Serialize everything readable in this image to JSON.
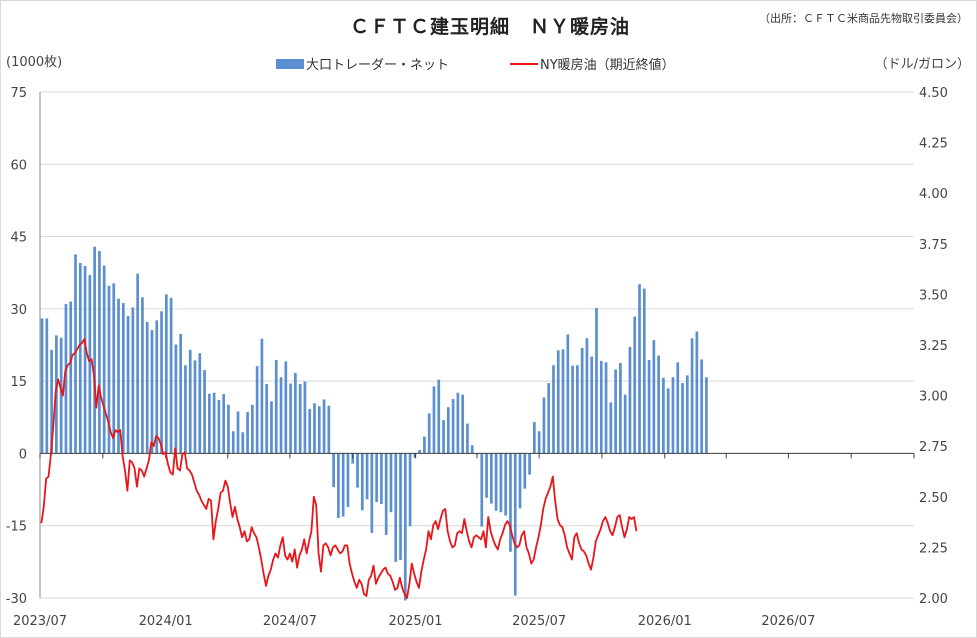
{
  "chart_data": {
    "type": "bar",
    "title": "ＣＦＴＣ建玉明細　ＮＹ暖房油",
    "source": "（出所：ＣＦＴＣ米商品先物取引委員会）",
    "left_unit": "(1000枚)",
    "right_unit": "（ドル/ガロン）",
    "left_axis": {
      "min": -30,
      "max": 75,
      "ticks": [
        "75",
        "60",
        "45",
        "30",
        "15",
        "0",
        "-15",
        "-30"
      ]
    },
    "right_axis": {
      "min": 2.0,
      "max": 4.5,
      "ticks": [
        "4.50",
        "4.25",
        "4.00",
        "3.75",
        "3.50",
        "3.25",
        "3.00",
        "2.75",
        "2.50",
        "2.25",
        "2.00"
      ]
    },
    "x_axis": {
      "start": "2023-07-01",
      "end": "2027-01-01",
      "tick_labels": [
        "2023/07",
        "2024/01",
        "2024/07",
        "2025/01",
        "2025/07",
        "2026/01",
        "2026/07"
      ],
      "tick_dates": [
        "2023-07-01",
        "2024-01-01",
        "2024-07-01",
        "2025-01-01",
        "2025-07-01",
        "2026-01-01",
        "2026-07-01"
      ]
    },
    "grid": "horizontal",
    "legend_position": "top-center",
    "series": [
      {
        "name": "大口トレーダー・ネット",
        "kind": "bar",
        "axis": "left",
        "color": "#5b8fcf",
        "start_date": "2023-07-04",
        "interval_days": 7,
        "values": [
          28,
          28,
          21.5,
          24.5,
          24,
          31,
          31.5,
          41.3,
          39.5,
          38.9,
          37,
          42.9,
          42,
          39,
          34.8,
          35.3,
          32.1,
          31.2,
          28.5,
          30.3,
          37.3,
          32.4,
          27.3,
          25.6,
          27.6,
          29.5,
          33,
          32.3,
          22.6,
          24.8,
          18.3,
          21.5,
          19.3,
          20.8,
          17.3,
          12.4,
          12.6,
          11.1,
          12.3,
          10.1,
          4.6,
          8.7,
          4.4,
          8.6,
          10.1,
          18.1,
          23.8,
          14.4,
          10.8,
          19.4,
          15.8,
          19.1,
          14.5,
          16.7,
          14.4,
          14.9,
          9.2,
          10.4,
          9.8,
          11.2,
          9.9,
          -7,
          -13.4,
          -13.1,
          -11.1,
          -2.1,
          -7.1,
          -11.8,
          -9.5,
          -16.5,
          -10.1,
          -10.5,
          -16.9,
          -12.2,
          -22.5,
          -22.1,
          -30.5,
          -15.1,
          -0.9,
          0.7,
          3.5,
          8.3,
          13.9,
          15.3,
          6.9,
          9.6,
          11.3,
          12.6,
          12.2,
          6.2,
          1.7,
          -0.2,
          -15.2,
          -9.2,
          -10.4,
          -11.9,
          -12.2,
          -12.9,
          -20.4,
          -29.5,
          -11.4,
          -7.3,
          -4.4,
          6.5,
          4.6,
          11.6,
          14.6,
          18.3,
          21.4,
          21.6,
          24.7,
          18.2,
          18.3,
          21.9,
          23.9,
          20.1,
          30.2,
          19.2,
          18.9,
          10.6,
          17.4,
          18.8,
          12.2,
          22.1,
          28.4,
          35.1,
          34.2,
          19.4,
          23.5,
          20.3,
          15.7,
          13.5,
          15.8,
          18.9,
          14.6,
          16.2,
          23.9,
          25.3,
          19.5,
          15.8
        ]
      },
      {
        "name": "NY暖房油（期近終値）",
        "kind": "line",
        "axis": "right",
        "color": "#e8151a",
        "start_date": "2023-07-03",
        "interval_days": 3.5,
        "values": [
          2.37,
          2.45,
          2.59,
          2.6,
          2.71,
          2.85,
          3.02,
          3.08,
          3.04,
          3.0,
          3.12,
          3.15,
          3.16,
          3.2,
          3.21,
          3.23,
          3.25,
          3.26,
          3.28,
          3.21,
          3.17,
          3.18,
          3.1,
          2.94,
          3.05,
          2.99,
          2.95,
          2.91,
          2.87,
          2.82,
          2.79,
          2.83,
          2.82,
          2.83,
          2.7,
          2.63,
          2.53,
          2.68,
          2.67,
          2.64,
          2.55,
          2.64,
          2.63,
          2.6,
          2.64,
          2.68,
          2.77,
          2.75,
          2.8,
          2.79,
          2.76,
          2.71,
          2.72,
          2.66,
          2.62,
          2.61,
          2.74,
          2.64,
          2.63,
          2.71,
          2.72,
          2.64,
          2.63,
          2.61,
          2.57,
          2.53,
          2.51,
          2.48,
          2.46,
          2.44,
          2.49,
          2.48,
          2.29,
          2.38,
          2.44,
          2.52,
          2.53,
          2.58,
          2.55,
          2.47,
          2.4,
          2.45,
          2.39,
          2.35,
          2.3,
          2.33,
          2.28,
          2.29,
          2.35,
          2.32,
          2.3,
          2.25,
          2.19,
          2.12,
          2.06,
          2.11,
          2.14,
          2.19,
          2.22,
          2.2,
          2.26,
          2.3,
          2.21,
          2.19,
          2.22,
          2.18,
          2.24,
          2.15,
          2.21,
          2.24,
          2.29,
          2.22,
          2.28,
          2.33,
          2.5,
          2.46,
          2.22,
          2.13,
          2.26,
          2.27,
          2.25,
          2.21,
          2.25,
          2.26,
          2.24,
          2.22,
          2.23,
          2.26,
          2.26,
          2.17,
          2.12,
          2.08,
          2.05,
          2.09,
          2.07,
          2.02,
          2.01,
          2.09,
          2.11,
          2.16,
          2.07,
          2.1,
          2.12,
          2.14,
          2.15,
          2.12,
          2.11,
          2.08,
          2.04,
          2.05,
          2.1,
          2.05,
          2.02,
          2.0,
          2.07,
          2.17,
          2.12,
          2.08,
          2.05,
          2.13,
          2.19,
          2.24,
          2.33,
          2.29,
          2.36,
          2.38,
          2.34,
          2.39,
          2.43,
          2.44,
          2.33,
          2.28,
          2.25,
          2.26,
          2.32,
          2.33,
          2.32,
          2.39,
          2.33,
          2.28,
          2.25,
          2.3,
          2.31,
          2.3,
          2.29,
          2.33,
          2.25,
          2.4,
          2.33,
          2.29,
          2.26,
          2.24,
          2.29,
          2.32,
          2.36,
          2.38,
          2.36,
          2.31,
          2.27,
          2.25,
          2.26,
          2.31,
          2.33,
          2.25,
          2.22,
          2.17,
          2.19,
          2.25,
          2.3,
          2.36,
          2.44,
          2.49,
          2.52,
          2.55,
          2.6,
          2.48,
          2.39,
          2.36,
          2.35,
          2.31,
          2.25,
          2.22,
          2.19,
          2.3,
          2.32,
          2.27,
          2.24,
          2.23,
          2.21,
          2.17,
          2.14,
          2.2,
          2.28,
          2.31,
          2.34,
          2.38,
          2.4,
          2.37,
          2.33,
          2.31,
          2.35,
          2.4,
          2.41,
          2.35,
          2.3,
          2.34,
          2.4,
          2.39,
          2.4,
          2.33
        ]
      }
    ]
  }
}
